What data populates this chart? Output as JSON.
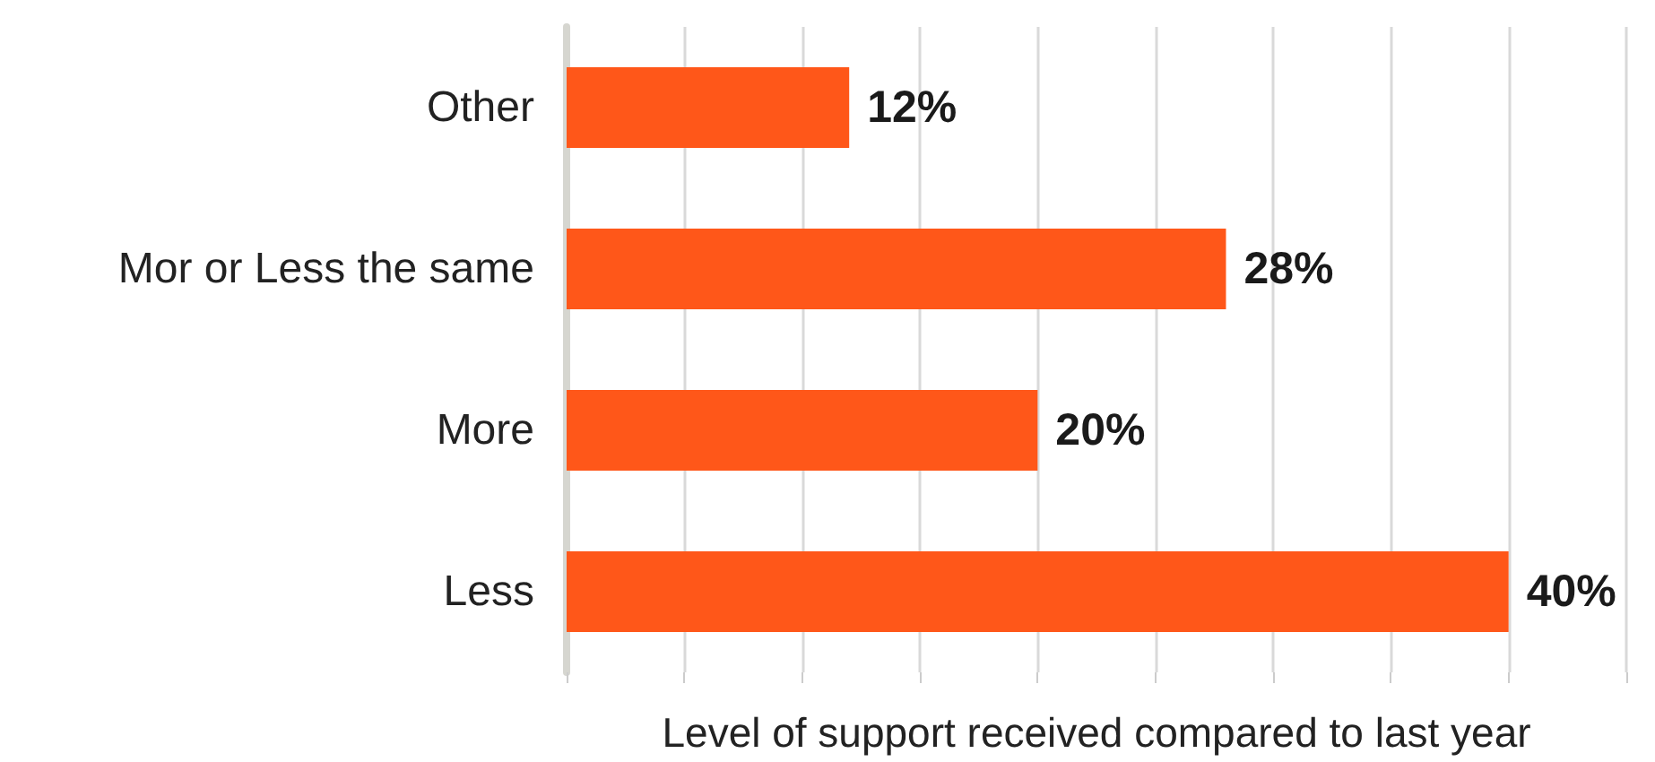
{
  "chart_data": {
    "type": "bar",
    "orientation": "horizontal",
    "xlabel": "Level of support received compared to last year",
    "categories": [
      "Other",
      "Mor or Less the same",
      "More",
      "Less"
    ],
    "values": [
      12,
      28,
      20,
      40
    ],
    "color": "#ff5719",
    "value_labels": [
      "12%",
      "28%",
      "20%",
      "40%"
    ],
    "xlim": [
      0,
      45
    ],
    "xticks": [
      {
        "value": 0,
        "label": null
      },
      {
        "value": 5,
        "label": null
      },
      {
        "value": 10,
        "label": null
      },
      {
        "value": 15,
        "label": null
      },
      {
        "value": 20,
        "label": null
      },
      {
        "value": 25,
        "label": null
      },
      {
        "value": 30,
        "label": null
      },
      {
        "value": 35,
        "label": null
      },
      {
        "value": 40,
        "label": null
      },
      {
        "value": 45,
        "label": null
      }
    ],
    "grid": "x",
    "tick_labels": "y"
  }
}
